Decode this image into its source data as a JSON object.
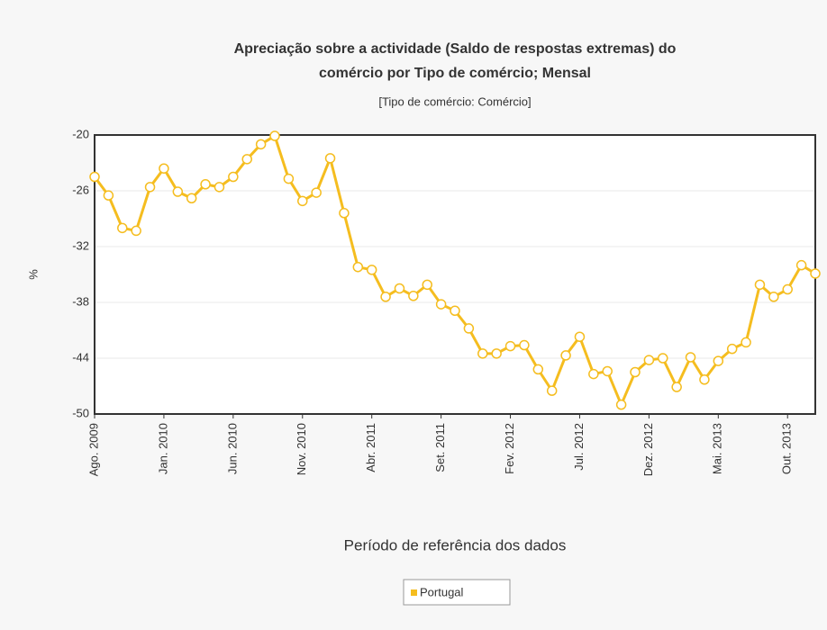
{
  "chart_data": {
    "type": "line",
    "title": [
      "Apreciação sobre a actividade (Saldo de respostas extremas) do",
      "comércio por Tipo de comércio; Mensal"
    ],
    "subtitle": "[Tipo de comércio: Comércio]",
    "xlabel": "Período de referência dos dados",
    "ylabel": "%",
    "categories": [
      "Ago. 2009",
      null,
      null,
      null,
      null,
      "Jan. 2010",
      null,
      null,
      null,
      null,
      "Jun. 2010",
      null,
      null,
      null,
      null,
      "Nov. 2010",
      null,
      null,
      null,
      null,
      "Abr. 2011",
      null,
      null,
      null,
      null,
      "Set. 2011",
      null,
      null,
      null,
      null,
      "Fev. 2012",
      null,
      null,
      null,
      null,
      "Jul. 2012",
      null,
      null,
      null,
      null,
      "Dez. 2012",
      null,
      null,
      null,
      null,
      "Mai. 2013",
      null,
      null,
      null,
      null,
      "Out. 2013",
      null,
      null
    ],
    "series": [
      {
        "name": "Portugal",
        "color": "#f5bd1f",
        "values": [
          -24.5,
          -26.5,
          -30.0,
          -30.3,
          -25.6,
          -23.6,
          -26.1,
          -26.8,
          -25.3,
          -25.6,
          -24.5,
          -22.6,
          -21.0,
          -20.1,
          -24.7,
          -27.1,
          -26.2,
          -22.5,
          -28.4,
          -34.2,
          -34.5,
          -37.4,
          -36.5,
          -37.3,
          -36.1,
          -38.2,
          -38.9,
          -40.8,
          -43.5,
          -43.5,
          -42.7,
          -42.6,
          -45.2,
          -47.5,
          -43.7,
          -41.7,
          -45.7,
          -45.4,
          -49.0,
          -45.5,
          -44.2,
          -44.0,
          -47.1,
          -43.9,
          -46.3,
          -44.3,
          -43.0,
          -42.3,
          -36.1,
          -37.4,
          -36.6,
          -34.0,
          -34.9
        ]
      }
    ],
    "ylim": [
      -50,
      -20
    ],
    "yticks": [
      -50,
      -44,
      -38,
      -32,
      -26,
      -20
    ],
    "grid": true
  }
}
